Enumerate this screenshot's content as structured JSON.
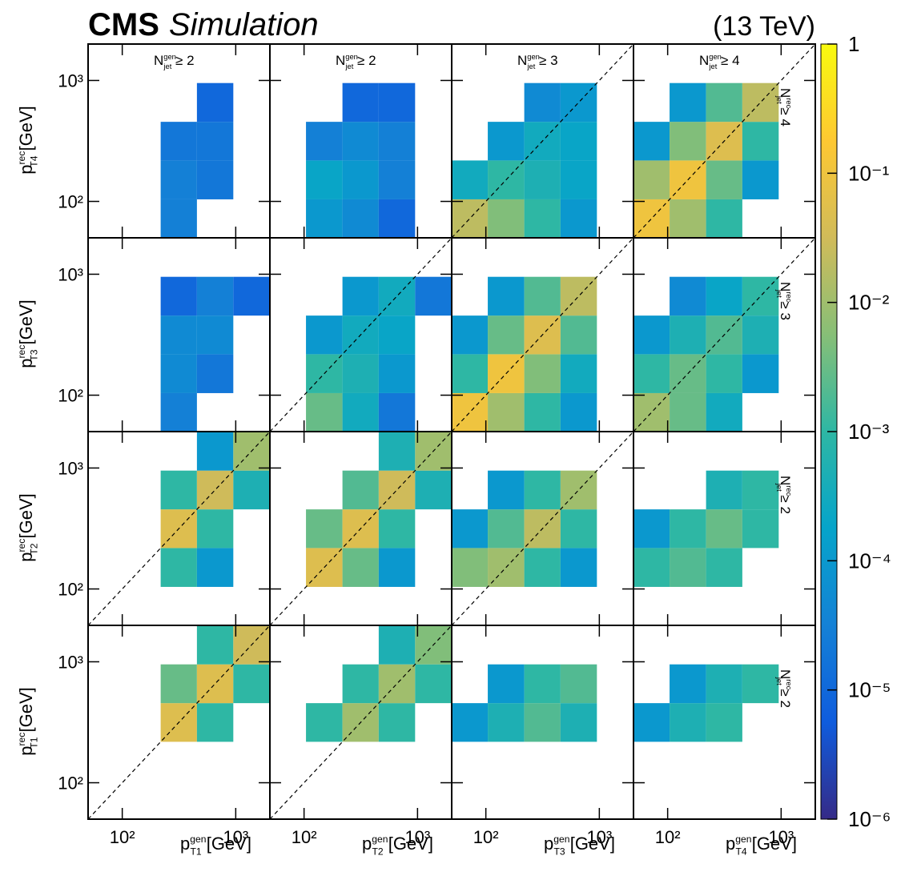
{
  "chart_data": {
    "type": "heatmap-grid",
    "title": "CMS",
    "subtitle": "Simulation",
    "energy": "(13 TeV)",
    "log": true,
    "xlim": [
      50,
      2000
    ],
    "ylim": [
      50,
      2000
    ],
    "xticks": [
      {
        "value": 100,
        "label": "10²"
      },
      {
        "value": 1000,
        "label": "10³"
      }
    ],
    "yticks": [
      {
        "value": 100,
        "label": "10²"
      },
      {
        "value": 1000,
        "label": "10³"
      }
    ],
    "bins": [
      50,
      104,
      218,
      455,
      952,
      2000
    ],
    "zlim": [
      1e-06,
      1
    ],
    "zticks": [
      {
        "value": 1e-06,
        "label": "10⁻⁶"
      },
      {
        "value": 1e-05,
        "label": "10⁻⁵"
      },
      {
        "value": 0.0001,
        "label": "10⁻⁴"
      },
      {
        "value": 0.001,
        "label": "10⁻³"
      },
      {
        "value": 0.01,
        "label": "10⁻²"
      },
      {
        "value": 0.1,
        "label": "10⁻¹"
      },
      1
    ],
    "colors": [
      "#352a87",
      "#0f5cdd",
      "#1481d6",
      "#06a4ca",
      "#2eb7a4",
      "#87bf77",
      "#d1bb59",
      "#fec832",
      "#f9fb0e"
    ],
    "columns": [
      {
        "title": {
          "main": "N",
          "sup": "gen",
          "sub": "jet",
          "rest": " ≥ 2"
        },
        "xlabel": {
          "main": "p",
          "sup": "gen",
          "sub": "T1",
          "unit": " [GeV]"
        }
      },
      {
        "title": {
          "main": "N",
          "sup": "gen",
          "sub": "jet",
          "rest": " ≥ 2"
        },
        "xlabel": {
          "main": "p",
          "sup": "gen",
          "sub": "T2",
          "unit": " [GeV]"
        }
      },
      {
        "title": {
          "main": "N",
          "sup": "gen",
          "sub": "jet",
          "rest": " ≥ 3"
        },
        "xlabel": {
          "main": "p",
          "sup": "gen",
          "sub": "T3",
          "unit": " [GeV]"
        }
      },
      {
        "title": {
          "main": "N",
          "sup": "gen",
          "sub": "jet",
          "rest": " ≥ 4"
        },
        "xlabel": {
          "main": "p",
          "sup": "gen",
          "sub": "T4",
          "unit": " [GeV]"
        }
      }
    ],
    "rows": [
      {
        "ylabel": {
          "main": "p",
          "sup": "rec",
          "sub": "T4",
          "unit": " [GeV]"
        },
        "tag": {
          "main": "N",
          "sup": "rec",
          "sub": "jet",
          "rest": " ≥ 4"
        }
      },
      {
        "ylabel": {
          "main": "p",
          "sup": "rec",
          "sub": "T3",
          "unit": " [GeV]"
        },
        "tag": {
          "main": "N",
          "sup": "rec",
          "sub": "jet",
          "rest": " ≥ 3"
        }
      },
      {
        "ylabel": {
          "main": "p",
          "sup": "rec",
          "sub": "T2",
          "unit": " [GeV]"
        },
        "tag": {
          "main": "N",
          "sup": "rec",
          "sub": "jet",
          "rest": " ≥ 2"
        }
      },
      {
        "ylabel": {
          "main": "p",
          "sup": "rec",
          "sub": "T1",
          "unit": " [GeV]"
        },
        "tag": {
          "main": "N",
          "sup": "rec",
          "sub": "jet",
          "rest": " ≥ 2"
        }
      }
    ],
    "panels": [
      [
        {
          "diagonal": false,
          "values": [
            [
              null,
              null,
              3e-05,
              null,
              null
            ],
            [
              null,
              null,
              3e-05,
              2e-05,
              null
            ],
            [
              null,
              null,
              2e-05,
              2e-05,
              null
            ],
            [
              null,
              null,
              null,
              1e-05,
              null
            ],
            [
              null,
              null,
              null,
              null,
              null
            ]
          ]
        },
        {
          "diagonal": false,
          "values": [
            [
              null,
              0.0001,
              5e-05,
              1e-05,
              null
            ],
            [
              null,
              0.0002,
              0.0001,
              3e-05,
              null
            ],
            [
              null,
              3e-05,
              5e-05,
              3e-05,
              null
            ],
            [
              null,
              null,
              1e-05,
              1e-05,
              null
            ],
            [
              null,
              null,
              null,
              null,
              null
            ]
          ]
        },
        {
          "diagonal": true,
          "values": [
            [
              0.02,
              0.005,
              0.001,
              0.0001,
              null
            ],
            [
              0.0003,
              0.001,
              0.0005,
              0.0002,
              null
            ],
            [
              null,
              0.0001,
              0.0003,
              0.0002,
              null
            ],
            [
              null,
              null,
              5e-05,
              0.0001,
              null
            ],
            [
              null,
              null,
              null,
              null,
              null
            ]
          ]
        },
        {
          "diagonal": true,
          "values": [
            [
              0.1,
              0.01,
              0.001,
              null,
              null
            ],
            [
              0.01,
              0.1,
              0.003,
              0.0001,
              null
            ],
            [
              0.0001,
              0.005,
              0.05,
              0.001,
              null
            ],
            [
              null,
              0.0001,
              0.002,
              0.02,
              null
            ],
            [
              null,
              null,
              null,
              null,
              null
            ]
          ]
        }
      ],
      [
        {
          "diagonal": false,
          "values": [
            [
              null,
              null,
              3e-05,
              null,
              null
            ],
            [
              null,
              null,
              5e-05,
              2e-05,
              null
            ],
            [
              null,
              null,
              5e-05,
              5e-05,
              null
            ],
            [
              null,
              null,
              1e-05,
              3e-05,
              1e-05
            ],
            [
              null,
              null,
              null,
              null,
              null
            ]
          ]
        },
        {
          "diagonal": true,
          "values": [
            [
              null,
              0.003,
              0.0003,
              2e-05,
              null
            ],
            [
              null,
              0.001,
              0.0005,
              0.0001,
              null
            ],
            [
              null,
              0.0001,
              0.0003,
              0.0002,
              null
            ],
            [
              null,
              null,
              0.0001,
              0.0003,
              2e-05
            ],
            [
              null,
              null,
              null,
              null,
              null
            ]
          ]
        },
        {
          "diagonal": true,
          "values": [
            [
              0.1,
              0.01,
              0.001,
              0.0001,
              null
            ],
            [
              0.001,
              0.1,
              0.005,
              0.0003,
              null
            ],
            [
              0.0001,
              0.003,
              0.05,
              0.002,
              null
            ],
            [
              null,
              0.0001,
              0.002,
              0.02,
              null
            ],
            [
              null,
              null,
              null,
              null,
              null
            ]
          ]
        },
        {
          "diagonal": true,
          "values": [
            [
              0.01,
              0.003,
              0.0003,
              null,
              null
            ],
            [
              0.001,
              0.003,
              0.001,
              0.0001,
              null
            ],
            [
              0.0001,
              0.0005,
              0.002,
              0.0005,
              null
            ],
            [
              null,
              5e-05,
              0.0002,
              0.001,
              null
            ],
            [
              null,
              null,
              null,
              null,
              null
            ]
          ]
        }
      ],
      [
        {
          "diagonal": true,
          "values": [
            [
              null,
              null,
              null,
              null,
              null
            ],
            [
              null,
              null,
              0.001,
              0.0001,
              null
            ],
            [
              null,
              null,
              0.05,
              0.001,
              null
            ],
            [
              null,
              null,
              0.001,
              0.03,
              0.0005
            ],
            [
              null,
              null,
              null,
              0.0001,
              0.01
            ]
          ]
        },
        {
          "diagonal": true,
          "values": [
            [
              null,
              null,
              null,
              null,
              null
            ],
            [
              null,
              0.05,
              0.003,
              0.0001,
              null
            ],
            [
              null,
              0.003,
              0.05,
              0.001,
              null
            ],
            [
              null,
              null,
              0.002,
              0.03,
              0.0005
            ],
            [
              null,
              null,
              null,
              0.0005,
              0.01
            ]
          ]
        },
        {
          "diagonal": true,
          "values": [
            [
              null,
              null,
              null,
              null,
              null
            ],
            [
              0.005,
              0.01,
              0.001,
              0.0001,
              null
            ],
            [
              0.0001,
              0.002,
              0.02,
              0.001,
              null
            ],
            [
              null,
              0.0001,
              0.001,
              0.01,
              null
            ],
            [
              null,
              null,
              null,
              null,
              null
            ]
          ]
        },
        {
          "diagonal": false,
          "values": [
            [
              null,
              null,
              null,
              null,
              null
            ],
            [
              0.001,
              0.002,
              0.001,
              null,
              null
            ],
            [
              0.0001,
              0.001,
              0.003,
              0.001,
              null
            ],
            [
              null,
              null,
              0.0005,
              0.001,
              null
            ],
            [
              null,
              null,
              null,
              null,
              null
            ]
          ]
        }
      ],
      [
        {
          "diagonal": true,
          "values": [
            [
              null,
              null,
              null,
              null,
              null
            ],
            [
              null,
              null,
              null,
              null,
              null
            ],
            [
              null,
              null,
              0.05,
              0.001,
              null
            ],
            [
              null,
              null,
              0.003,
              0.05,
              0.001
            ],
            [
              null,
              null,
              null,
              0.001,
              0.03
            ]
          ]
        },
        {
          "diagonal": true,
          "values": [
            [
              null,
              null,
              null,
              null,
              null
            ],
            [
              null,
              null,
              null,
              null,
              null
            ],
            [
              null,
              0.001,
              0.01,
              0.001,
              null
            ],
            [
              null,
              null,
              0.001,
              0.01,
              0.001
            ],
            [
              null,
              null,
              null,
              0.0005,
              0.005
            ]
          ]
        },
        {
          "diagonal": false,
          "values": [
            [
              null,
              null,
              null,
              null,
              null
            ],
            [
              null,
              null,
              null,
              null,
              null
            ],
            [
              0.0001,
              0.0005,
              0.002,
              0.0005,
              null
            ],
            [
              null,
              0.0001,
              0.001,
              0.002,
              null
            ],
            [
              null,
              null,
              null,
              null,
              null
            ]
          ]
        },
        {
          "diagonal": false,
          "values": [
            [
              null,
              null,
              null,
              null,
              null
            ],
            [
              null,
              null,
              null,
              null,
              null
            ],
            [
              0.0001,
              0.0005,
              0.001,
              null,
              null
            ],
            [
              null,
              0.0001,
              0.0005,
              0.001,
              null
            ],
            [
              null,
              null,
              null,
              null,
              null
            ]
          ]
        }
      ]
    ]
  }
}
